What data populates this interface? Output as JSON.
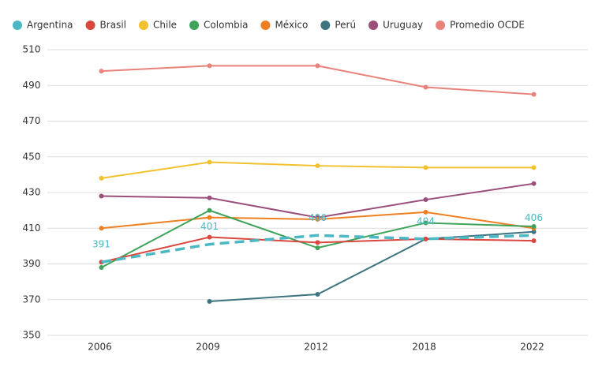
{
  "chart_data": {
    "type": "line",
    "categories": [
      "2006",
      "2009",
      "2012",
      "2018",
      "2022"
    ],
    "ylim": [
      350,
      510
    ],
    "yticks": [
      350,
      370,
      390,
      410,
      430,
      450,
      470,
      490,
      510
    ],
    "grid": true,
    "series": [
      {
        "name": "Argentina",
        "color": "#4bb8c4",
        "dashed": true,
        "data_labels": true,
        "values": [
          391,
          401,
          406,
          404,
          406
        ]
      },
      {
        "name": "Brasil",
        "color": "#d9473f",
        "values": [
          391,
          405,
          402,
          404,
          403
        ]
      },
      {
        "name": "Chile",
        "color": "#f2c12e",
        "values": [
          438,
          447,
          445,
          444,
          444
        ]
      },
      {
        "name": "Colombia",
        "color": "#3fa35a",
        "values": [
          388,
          420,
          399,
          413,
          411
        ]
      },
      {
        "name": "México",
        "color": "#f07f22",
        "values": [
          410,
          416,
          415,
          419,
          410
        ]
      },
      {
        "name": "Perú",
        "color": "#3e7480",
        "values": [
          null,
          369,
          373,
          404,
          408
        ]
      },
      {
        "name": "Uruguay",
        "color": "#9a4f7b",
        "values": [
          428,
          427,
          416,
          426,
          435
        ]
      },
      {
        "name": "Promedio OCDE",
        "color": "#e8827a",
        "values": [
          498,
          501,
          501,
          489,
          485
        ]
      }
    ]
  }
}
